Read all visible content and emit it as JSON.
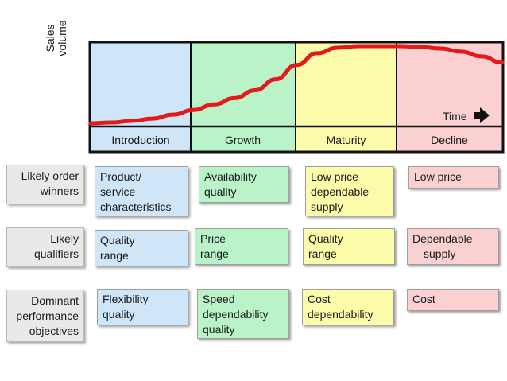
{
  "chart_data": {
    "type": "line",
    "ylabel": [
      "Sales",
      "volume"
    ],
    "xlabel": "Time",
    "stages": [
      "Introduction",
      "Growth",
      "Maturity",
      "Decline"
    ],
    "stage_colors": [
      "#cfe6f8",
      "#b9f3c7",
      "#fbfbaa",
      "#fbd0d0"
    ],
    "curve_color": "#e41a1a",
    "series": [
      {
        "x": [
          0,
          0.05,
          0.1,
          0.15,
          0.2,
          0.25,
          0.3,
          0.35,
          0.4,
          0.45,
          0.5,
          0.55,
          0.6,
          0.65,
          0.7,
          0.75,
          0.8,
          0.85,
          0.9,
          0.95,
          1.0
        ],
        "values": [
          0.02,
          0.03,
          0.05,
          0.08,
          0.13,
          0.19,
          0.26,
          0.34,
          0.44,
          0.58,
          0.76,
          0.91,
          0.98,
          1.0,
          1.0,
          1.0,
          0.99,
          0.97,
          0.93,
          0.87,
          0.79
        ]
      }
    ]
  },
  "rows": [
    {
      "label": [
        "Likely order",
        "winners"
      ],
      "cells": [
        [
          "Product/",
          "service",
          "characteristics"
        ],
        [
          "Availability",
          "quality"
        ],
        [
          "Low price",
          "dependable",
          "supply"
        ],
        [
          "Low price"
        ]
      ]
    },
    {
      "label": [
        "Likely",
        "qualifiers"
      ],
      "cells": [
        [
          "Quality",
          "range"
        ],
        [
          "Price",
          "range"
        ],
        [
          "Quality",
          "range"
        ],
        [
          "Dependable",
          "supply"
        ]
      ]
    },
    {
      "label": [
        "Dominant",
        "performance",
        "objectives"
      ],
      "cells": [
        [
          "Flexibility",
          "quality"
        ],
        [
          "Speed",
          "dependability",
          "quality"
        ],
        [
          "Cost",
          "dependability"
        ],
        [
          "Cost"
        ]
      ]
    }
  ]
}
